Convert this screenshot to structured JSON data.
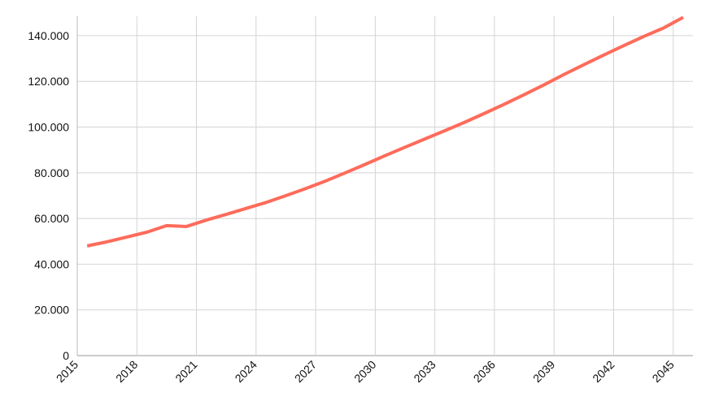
{
  "chart_data": {
    "type": "line",
    "title": "",
    "xlabel": "",
    "ylabel": "",
    "x": [
      2015,
      2016,
      2017,
      2018,
      2019,
      2020,
      2021,
      2022,
      2023,
      2024,
      2025,
      2026,
      2027,
      2028,
      2029,
      2030,
      2031,
      2032,
      2033,
      2034,
      2035,
      2036,
      2037,
      2038,
      2039,
      2040,
      2041,
      2042,
      2043,
      2044,
      2045
    ],
    "series": [
      {
        "values": [
          48000,
          49800,
          51900,
          54000,
          56900,
          56500,
          59300,
          61800,
          64400,
          67000,
          70000,
          73100,
          76400,
          80000,
          83700,
          87500,
          91200,
          94800,
          98400,
          102100,
          106000,
          110000,
          114200,
          118500,
          123000,
          127300,
          131500,
          135600,
          139600,
          143300,
          148000
        ],
        "color": "#ff6b5b"
      }
    ],
    "xlim": [
      2015,
      2046
    ],
    "ylim": [
      0,
      148500
    ],
    "x_ticks": [
      "2015",
      "2018",
      "2021",
      "2024",
      "2027",
      "2030",
      "2033",
      "2036",
      "2039",
      "2042",
      "2045"
    ],
    "y_ticks": [
      "0",
      "20.000",
      "40.000",
      "60.000",
      "80.000",
      "100.000",
      "120.000",
      "140.000"
    ],
    "y_tick_values": [
      0,
      20000,
      40000,
      60000,
      80000,
      100000,
      120000,
      140000
    ],
    "grid": true,
    "legend": "none"
  }
}
